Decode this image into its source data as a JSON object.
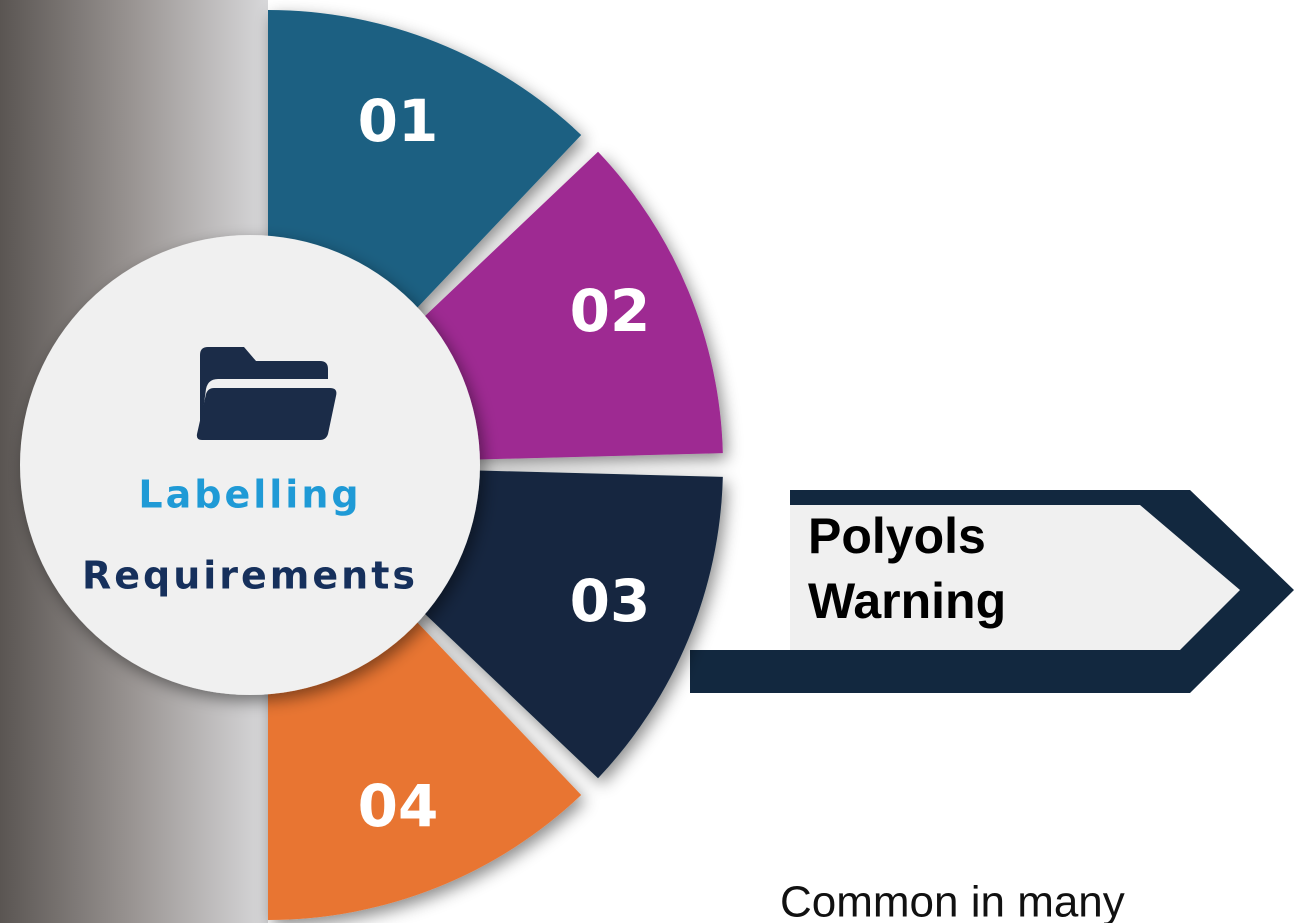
{
  "segments": [
    {
      "label": "01"
    },
    {
      "label": "02"
    },
    {
      "label": "03"
    },
    {
      "label": "04"
    }
  ],
  "center": {
    "lines": [
      "Labelling",
      "Requirements"
    ]
  },
  "banner": {
    "lines": [
      "Polyols",
      "Warning"
    ]
  },
  "footer_text": "Common in many"
}
